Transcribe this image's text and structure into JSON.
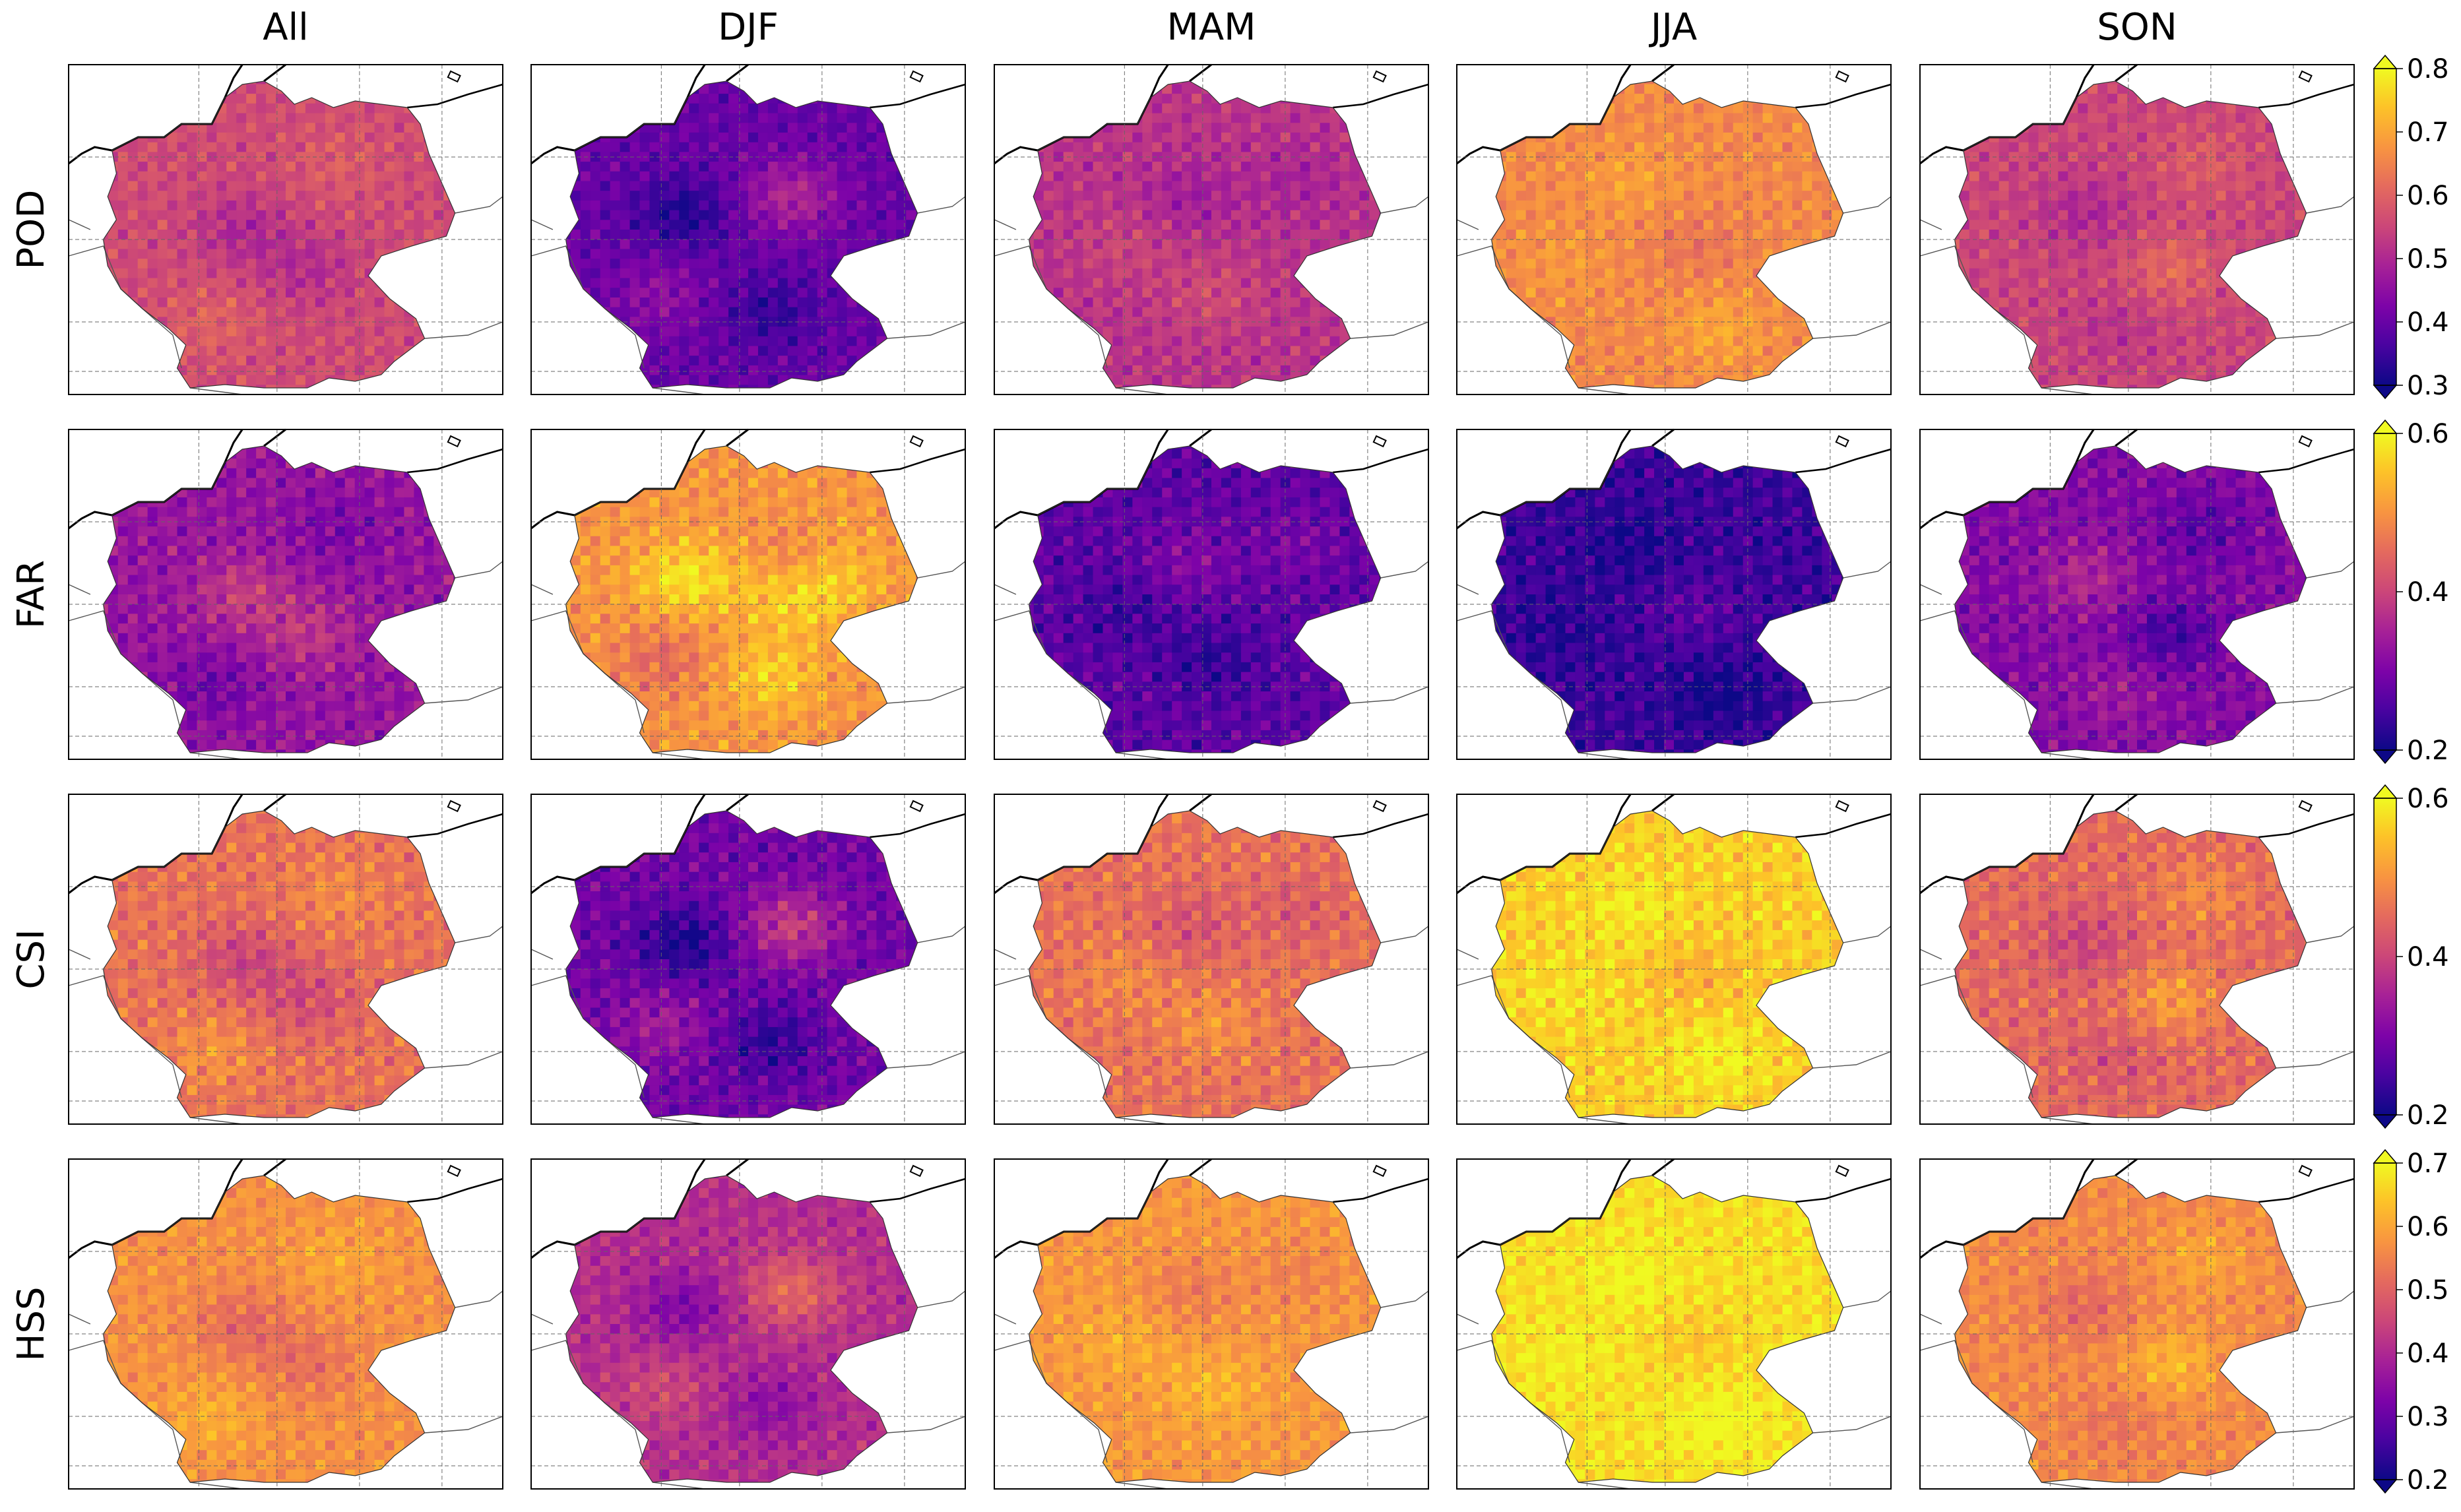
{
  "chart_data": {
    "type": "heatmap",
    "title": "",
    "columns": [
      "All",
      "DJF",
      "MAM",
      "JJA",
      "SON"
    ],
    "rows": [
      {
        "metric": "POD",
        "colorbar": {
          "ticks": [
            0.3,
            0.4,
            0.5,
            0.6,
            0.7,
            0.8
          ],
          "tick_labels": [
            "0.3",
            "0.4",
            "0.5",
            "0.6",
            "0.7",
            "0.8"
          ],
          "vmin": 0.3,
          "vmax": 0.8,
          "extend": "both"
        },
        "mean_values": [
          0.56,
          0.4,
          0.52,
          0.66,
          0.55
        ]
      },
      {
        "metric": "FAR",
        "colorbar": {
          "ticks": [
            0.2,
            0.4,
            0.6
          ],
          "tick_labels": [
            "0.2",
            "0.4",
            "0.6"
          ],
          "vmin": 0.2,
          "vmax": 0.6,
          "extend": "both"
        },
        "mean_values": [
          0.33,
          0.5,
          0.27,
          0.24,
          0.31
        ]
      },
      {
        "metric": "CSI",
        "colorbar": {
          "ticks": [
            0.2,
            0.4,
            0.6
          ],
          "tick_labels": [
            "0.2",
            "0.4",
            "0.6"
          ],
          "vmin": 0.2,
          "vmax": 0.6,
          "extend": "both"
        },
        "mean_values": [
          0.46,
          0.29,
          0.46,
          0.56,
          0.45
        ]
      },
      {
        "metric": "HSS",
        "colorbar": {
          "ticks": [
            0.2,
            0.3,
            0.4,
            0.5,
            0.6,
            0.7
          ],
          "tick_labels": [
            "0.2",
            "0.3",
            "0.4",
            "0.5",
            "0.6",
            "0.7"
          ],
          "vmin": 0.2,
          "vmax": 0.7,
          "extend": "both"
        },
        "mean_values": [
          0.57,
          0.41,
          0.58,
          0.67,
          0.56
        ]
      }
    ],
    "colormap": "plasma",
    "grid": true
  }
}
